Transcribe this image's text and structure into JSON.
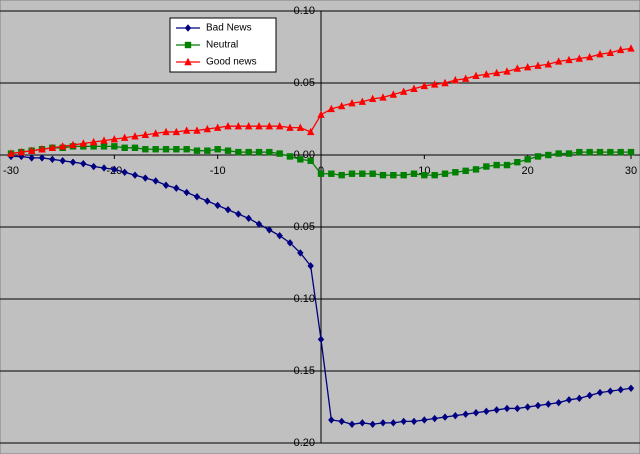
{
  "chart_data": {
    "type": "line",
    "x": [
      -30,
      -29,
      -28,
      -27,
      -26,
      -25,
      -24,
      -23,
      -22,
      -21,
      -20,
      -19,
      -18,
      -17,
      -16,
      -15,
      -14,
      -13,
      -12,
      -11,
      -10,
      -9,
      -8,
      -7,
      -6,
      -5,
      -4,
      -3,
      -2,
      -1,
      0,
      1,
      2,
      3,
      4,
      5,
      6,
      7,
      8,
      9,
      10,
      11,
      12,
      13,
      14,
      15,
      16,
      17,
      18,
      19,
      20,
      21,
      22,
      23,
      24,
      25,
      26,
      27,
      28,
      29,
      30
    ],
    "series": [
      {
        "name": "Bad News",
        "color": "#000080",
        "marker": "diamond",
        "values": [
          -0.001,
          -0.001,
          -0.002,
          -0.002,
          -0.003,
          -0.004,
          -0.005,
          -0.006,
          -0.008,
          -0.009,
          -0.01,
          -0.012,
          -0.014,
          -0.016,
          -0.018,
          -0.021,
          -0.023,
          -0.026,
          -0.029,
          -0.032,
          -0.035,
          -0.038,
          -0.041,
          -0.044,
          -0.048,
          -0.052,
          -0.056,
          -0.061,
          -0.068,
          -0.077,
          -0.128,
          -0.184,
          -0.185,
          -0.187,
          -0.186,
          -0.187,
          -0.186,
          -0.186,
          -0.185,
          -0.185,
          -0.184,
          -0.183,
          -0.182,
          -0.181,
          -0.18,
          -0.179,
          -0.178,
          -0.177,
          -0.176,
          -0.176,
          -0.175,
          -0.174,
          -0.173,
          -0.172,
          -0.17,
          -0.169,
          -0.167,
          -0.165,
          -0.164,
          -0.163,
          -0.162
        ]
      },
      {
        "name": "Neutral",
        "color": "#008000",
        "marker": "square",
        "values": [
          0.001,
          0.002,
          0.003,
          0.004,
          0.005,
          0.005,
          0.006,
          0.006,
          0.006,
          0.006,
          0.006,
          0.005,
          0.005,
          0.004,
          0.004,
          0.004,
          0.004,
          0.004,
          0.003,
          0.003,
          0.004,
          0.003,
          0.002,
          0.002,
          0.002,
          0.002,
          0.001,
          -0.001,
          -0.003,
          -0.004,
          -0.013,
          -0.013,
          -0.014,
          -0.013,
          -0.013,
          -0.013,
          -0.014,
          -0.014,
          -0.014,
          -0.013,
          -0.014,
          -0.014,
          -0.013,
          -0.012,
          -0.011,
          -0.01,
          -0.008,
          -0.007,
          -0.007,
          -0.005,
          -0.003,
          -0.001,
          0.0,
          0.001,
          0.001,
          0.002,
          0.002,
          0.002,
          0.002,
          0.002,
          0.002
        ]
      },
      {
        "name": "Good news",
        "color": "#ff0000",
        "marker": "triangle",
        "values": [
          0.001,
          0.002,
          0.003,
          0.004,
          0.005,
          0.006,
          0.007,
          0.008,
          0.009,
          0.01,
          0.011,
          0.012,
          0.013,
          0.014,
          0.015,
          0.016,
          0.016,
          0.017,
          0.017,
          0.018,
          0.019,
          0.02,
          0.02,
          0.02,
          0.02,
          0.02,
          0.02,
          0.019,
          0.019,
          0.016,
          0.028,
          0.032,
          0.034,
          0.036,
          0.037,
          0.039,
          0.04,
          0.042,
          0.044,
          0.046,
          0.048,
          0.049,
          0.05,
          0.052,
          0.053,
          0.055,
          0.056,
          0.057,
          0.058,
          0.06,
          0.061,
          0.062,
          0.063,
          0.065,
          0.066,
          0.067,
          0.068,
          0.07,
          0.071,
          0.073,
          0.074
        ]
      }
    ],
    "xlim": [
      -30,
      30
    ],
    "xticks": [
      -30,
      -20,
      -10,
      0,
      10,
      20,
      30
    ],
    "ylim": [
      -0.2,
      0.1
    ],
    "yticks": [
      {
        "value": -0.2,
        "label": "-0.20"
      },
      -0.15,
      {
        "value": -0.1,
        "label": "-0.10"
      },
      -0.05,
      {
        "value": 0,
        "label": "0.00"
      },
      0.05,
      {
        "value": 0.1,
        "label": "0.10"
      }
    ],
    "grid": true,
    "legend": "top-left"
  }
}
